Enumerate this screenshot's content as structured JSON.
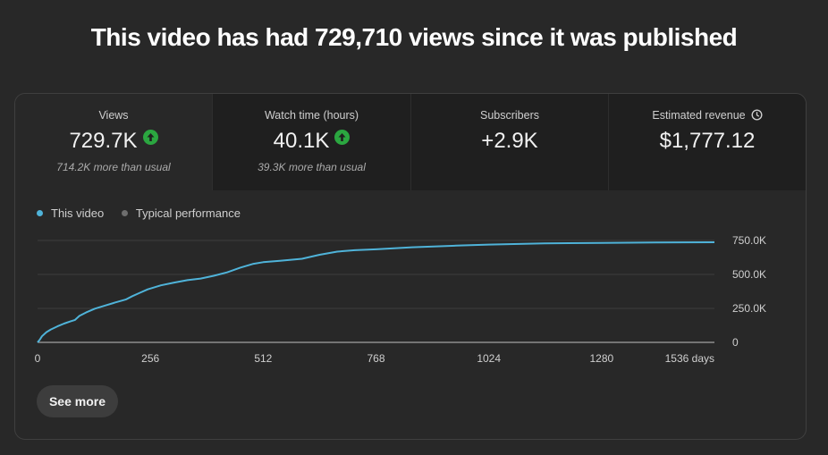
{
  "headline": "This video has had 729,710 views since it was published",
  "tabs": [
    {
      "title": "Views",
      "value": "729.7K",
      "sub": "714.2K more than usual",
      "trend": "up"
    },
    {
      "title": "Watch time (hours)",
      "value": "40.1K",
      "sub": "39.3K more than usual",
      "trend": "up"
    },
    {
      "title": "Subscribers",
      "value": "+2.9K",
      "sub": ""
    },
    {
      "title": "Estimated revenue",
      "value": "$1,777.12",
      "sub": "",
      "icon": "clock-icon"
    }
  ],
  "legend": {
    "this_video": "This video",
    "typical": "Typical performance"
  },
  "colors": {
    "this_video": "#4fb3d9",
    "typical": "#6e6e6e",
    "trend_up": "#2ba640"
  },
  "see_more_label": "See more",
  "chart_data": {
    "type": "line",
    "xlim": [
      0,
      1536
    ],
    "ylim": [
      0,
      750000
    ],
    "x_ticks": [
      0,
      256,
      512,
      768,
      1024,
      1280,
      1536
    ],
    "x_tick_labels": [
      "0",
      "256",
      "512",
      "768",
      "1024",
      "1280",
      "1536 days"
    ],
    "y_ticks": [
      0,
      250000,
      500000,
      750000
    ],
    "y_tick_labels": [
      "0",
      "250.0K",
      "500.0K",
      "750.0K"
    ],
    "grid": true,
    "series": [
      {
        "name": "This video",
        "x": [
          0,
          5,
          10,
          20,
          30,
          45,
          60,
          75,
          85,
          95,
          110,
          130,
          150,
          175,
          200,
          215,
          230,
          250,
          280,
          310,
          340,
          370,
          400,
          430,
          460,
          490,
          512,
          550,
          600,
          640,
          680,
          720,
          768,
          850,
          950,
          1024,
          1150,
          1280,
          1400,
          1536
        ],
        "y": [
          0,
          20000,
          45000,
          75000,
          95000,
          118000,
          138000,
          155000,
          165000,
          195000,
          220000,
          248000,
          268000,
          292000,
          315000,
          340000,
          362000,
          390000,
          420000,
          440000,
          458000,
          470000,
          490000,
          515000,
          550000,
          578000,
          590000,
          600000,
          615000,
          645000,
          668000,
          678000,
          685000,
          700000,
          712000,
          720000,
          728000,
          732000,
          735000,
          737000
        ]
      }
    ]
  }
}
